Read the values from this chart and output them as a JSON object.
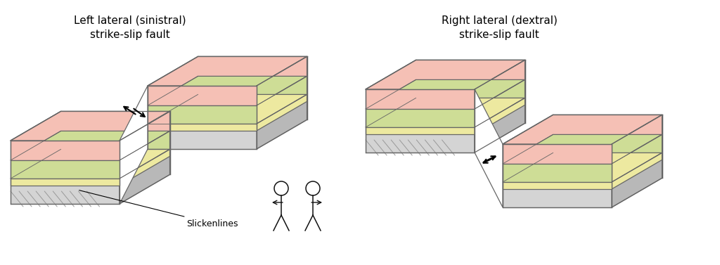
{
  "bg_color": "#ffffff",
  "title_left": "Left lateral (sinistral)\nstrike-slip fault",
  "title_right": "Right lateral (dextral)\nstrike-slip fault",
  "label_slickenlines": "Slickenlines",
  "color_gray_lt": "#d4d4d4",
  "color_gray_md": "#b8b8b8",
  "color_gray_dk": "#a0a0a0",
  "color_pink": "#f5c0b5",
  "color_green": "#cedd96",
  "color_yellow": "#ede9a0",
  "color_white": "#ffffff",
  "color_outline": "#666666",
  "color_black": "#111111",
  "color_hatch": "#999999",
  "sx": 0.55,
  "sy": 0.32,
  "lyr_pink": 28,
  "lyr_green": 26,
  "lyr_yellow": 10,
  "bh": 90
}
